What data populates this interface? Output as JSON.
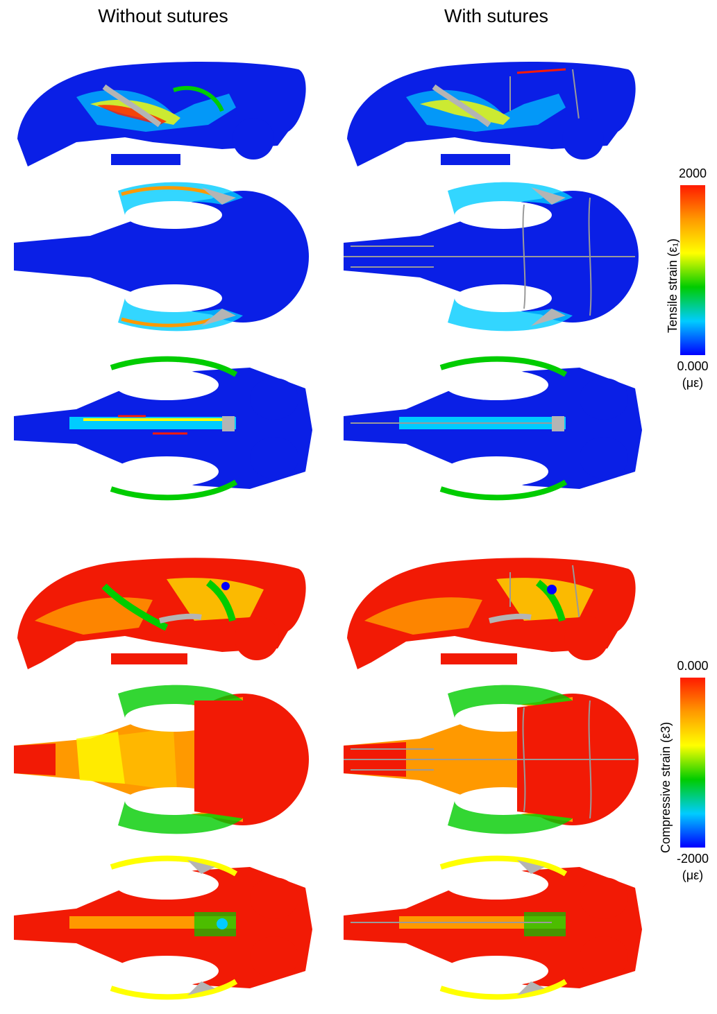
{
  "columns": {
    "left_title": "Without sutures",
    "right_title": "With sutures"
  },
  "rows": [
    {
      "view": "lateral",
      "scale": "tensile"
    },
    {
      "view": "dorsal",
      "scale": "tensile"
    },
    {
      "view": "ventral",
      "scale": "tensile"
    },
    {
      "view": "lateral",
      "scale": "compressive"
    },
    {
      "view": "dorsal",
      "scale": "compressive"
    },
    {
      "view": "ventral",
      "scale": "compressive"
    }
  ],
  "tensile_scale": {
    "max": "2000",
    "min": "0.000",
    "unit": "(με)",
    "label": "Tensile strain (ε₁)",
    "colors": [
      "#ff1a00",
      "#ff9900",
      "#ffff00",
      "#00cc00",
      "#00ccff",
      "#0000ff"
    ]
  },
  "compressive_scale": {
    "max": "0.000",
    "min": "-2000",
    "unit": "(με)",
    "label": "Compressive strain (ε3)",
    "colors": [
      "#ff1a00",
      "#ff9900",
      "#ffff00",
      "#00cc00",
      "#00ccff",
      "#0000ff"
    ]
  },
  "colors": {
    "tensile_base": "#0a1fe6",
    "compressive_base": "#f21a05",
    "bone_gray": "#b4b4b4",
    "suture_gray": "#9a9a9a"
  }
}
